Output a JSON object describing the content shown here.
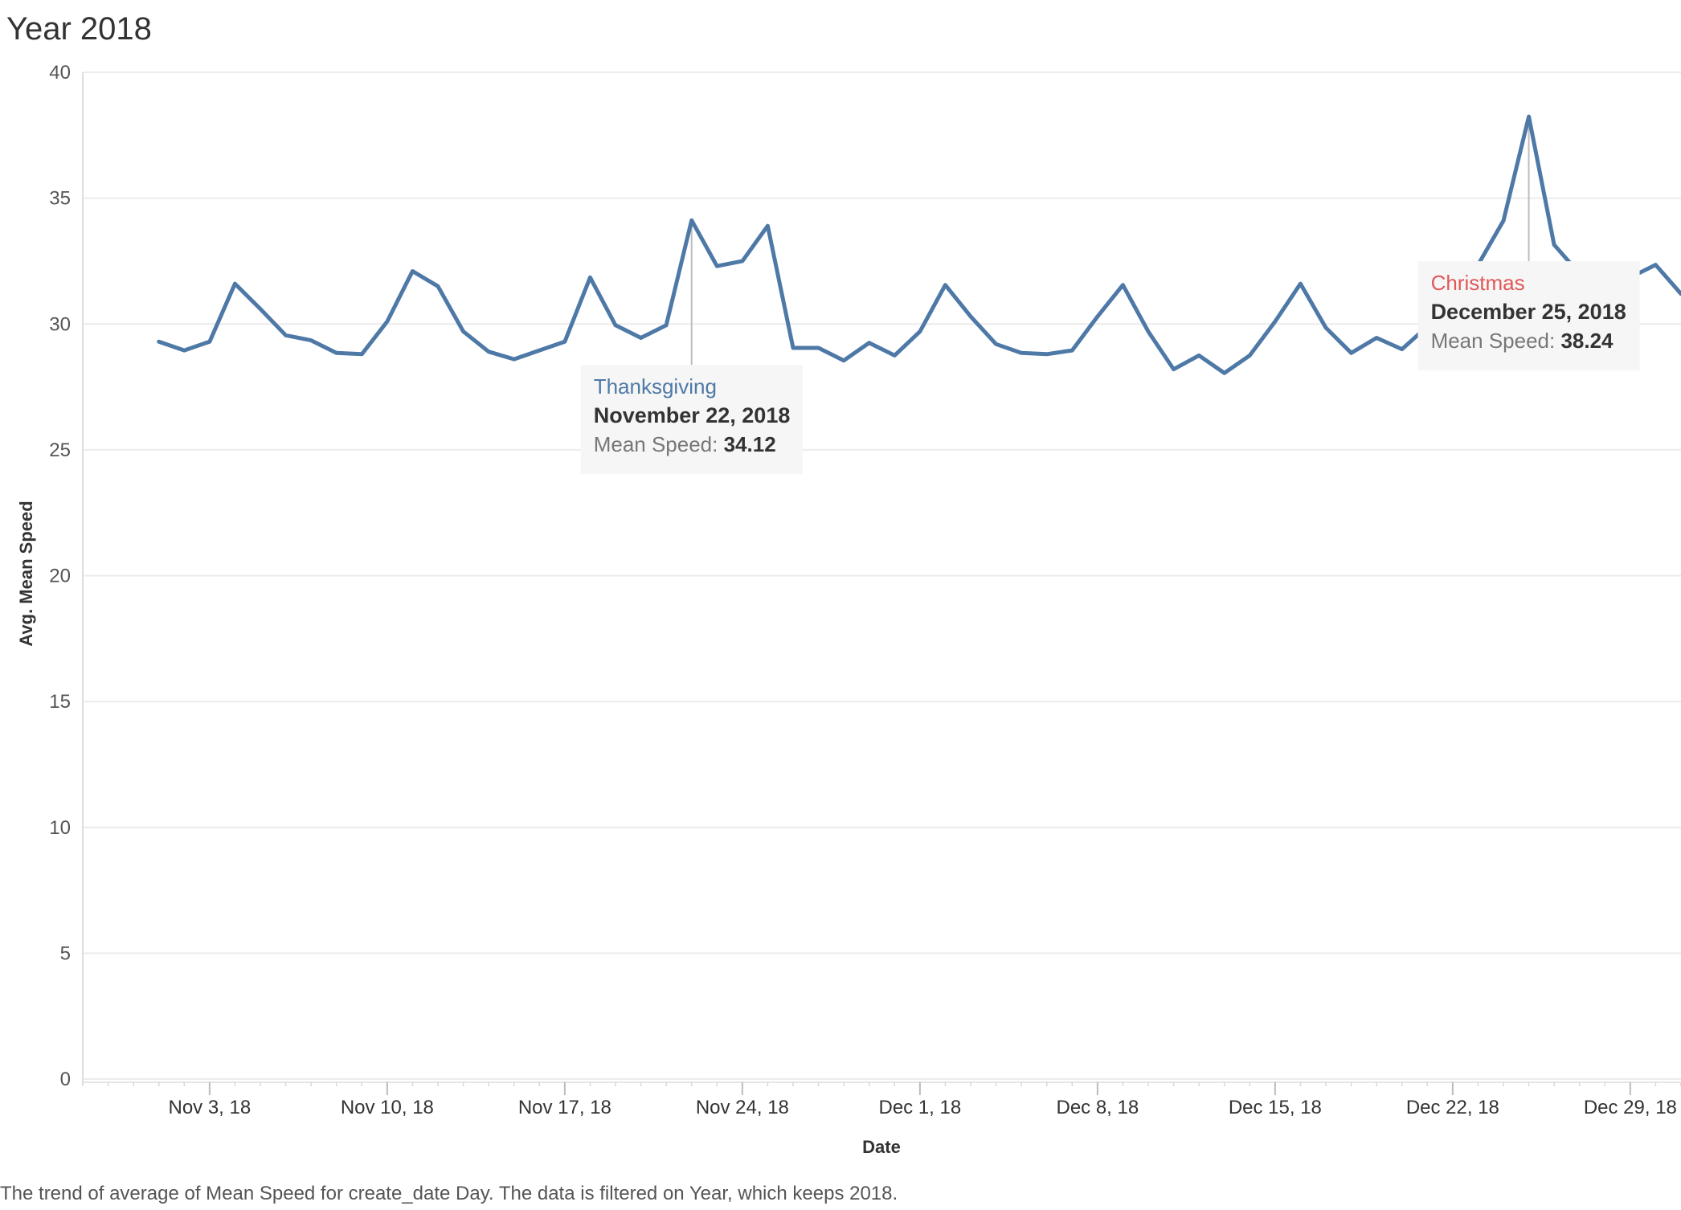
{
  "title": "Year 2018",
  "caption": "The trend of average of Mean Speed for create_date Day. The data is filtered on Year, which keeps 2018.",
  "chart_data": {
    "type": "line",
    "title": "Year 2018",
    "xlabel": "Date",
    "ylabel": "Avg. Mean Speed",
    "ylim": [
      0,
      40
    ],
    "xlim": [
      "2018-10-29",
      "2018-12-31"
    ],
    "yticks": [
      0,
      5,
      10,
      15,
      20,
      25,
      30,
      35,
      40
    ],
    "xticks": [
      {
        "date": "2018-11-03",
        "label": "Nov 3, 18"
      },
      {
        "date": "2018-11-10",
        "label": "Nov 10, 18"
      },
      {
        "date": "2018-11-17",
        "label": "Nov 17, 18"
      },
      {
        "date": "2018-11-24",
        "label": "Nov 24, 18"
      },
      {
        "date": "2018-12-01",
        "label": "Dec 1, 18"
      },
      {
        "date": "2018-12-08",
        "label": "Dec 8, 18"
      },
      {
        "date": "2018-12-15",
        "label": "Dec 15, 18"
      },
      {
        "date": "2018-12-22",
        "label": "Dec 22, 18"
      },
      {
        "date": "2018-12-29",
        "label": "Dec 29, 18"
      }
    ],
    "grid": true,
    "line_color": "#4e79a7",
    "series": [
      {
        "x": [
          "2018-11-01",
          "2018-11-02",
          "2018-11-03",
          "2018-11-04",
          "2018-11-05",
          "2018-11-06",
          "2018-11-07",
          "2018-11-08",
          "2018-11-09",
          "2018-11-10",
          "2018-11-11",
          "2018-11-12",
          "2018-11-13",
          "2018-11-14",
          "2018-11-15",
          "2018-11-16",
          "2018-11-17",
          "2018-11-18",
          "2018-11-19",
          "2018-11-20",
          "2018-11-21",
          "2018-11-22",
          "2018-11-23",
          "2018-11-24",
          "2018-11-25",
          "2018-11-26",
          "2018-11-27",
          "2018-11-28",
          "2018-11-29",
          "2018-11-30",
          "2018-12-01",
          "2018-12-02",
          "2018-12-03",
          "2018-12-04",
          "2018-12-05",
          "2018-12-06",
          "2018-12-07",
          "2018-12-08",
          "2018-12-09",
          "2018-12-10",
          "2018-12-11",
          "2018-12-12",
          "2018-12-13",
          "2018-12-14",
          "2018-12-15",
          "2018-12-16",
          "2018-12-17",
          "2018-12-18",
          "2018-12-19",
          "2018-12-20",
          "2018-12-21",
          "2018-12-22",
          "2018-12-23",
          "2018-12-24",
          "2018-12-25",
          "2018-12-26",
          "2018-12-27",
          "2018-12-28",
          "2018-12-29",
          "2018-12-30",
          "2018-12-31"
        ],
        "values": [
          29.3,
          28.95,
          29.3,
          31.6,
          30.6,
          29.55,
          29.35,
          28.85,
          28.8,
          30.1,
          32.1,
          31.5,
          29.7,
          28.9,
          28.6,
          28.95,
          29.3,
          31.85,
          29.95,
          29.45,
          29.95,
          34.12,
          32.3,
          32.5,
          33.9,
          29.05,
          29.05,
          28.55,
          29.25,
          28.75,
          29.7,
          31.55,
          30.3,
          29.2,
          28.85,
          28.8,
          28.95,
          30.3,
          31.55,
          29.7,
          28.2,
          28.75,
          28.05,
          28.75,
          30.1,
          31.6,
          29.85,
          28.85,
          29.45,
          29.0,
          29.9,
          31.5,
          32.35,
          34.1,
          38.24,
          33.15,
          32.0,
          30.85,
          31.85,
          32.35,
          31.2
        ]
      }
    ],
    "annotations": [
      {
        "date": "2018-11-22",
        "name": "Thanksgiving",
        "date_label": "November 22, 2018",
        "metric_label": "Mean Speed:",
        "value_label": "34.12",
        "name_color": "#4e79a7"
      },
      {
        "date": "2018-12-25",
        "name": "Christmas",
        "date_label": "December 25, 2018",
        "metric_label": "Mean Speed:",
        "value_label": "38.24",
        "name_color": "#e15759"
      }
    ]
  }
}
